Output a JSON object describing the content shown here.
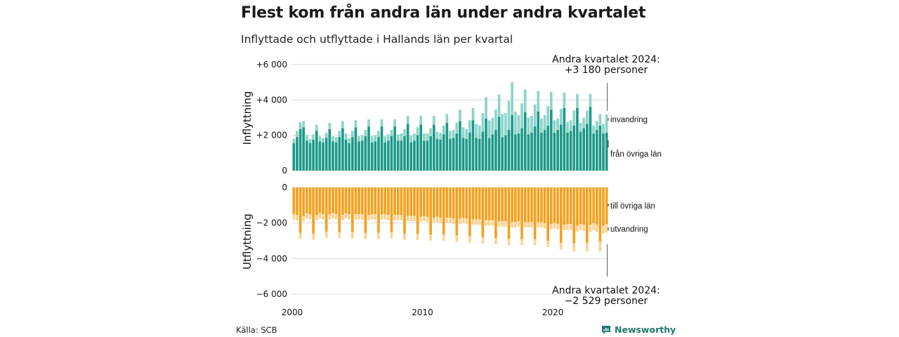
{
  "title": "Flest kom från andra län under andra kvartalet",
  "subtitle": "Inflyttade och utflyttade i Hallands län per kvartal",
  "source": "Källa: SCB",
  "brand": {
    "name": "Newsworthy",
    "icon": "newsworthy-logo-icon",
    "color": "#1f7a6a"
  },
  "colors": {
    "inflow_domestic": "#1b9987",
    "inflow_immigration": "#8dd3c9",
    "outflow_domestic": "#f5a01d",
    "outflow_emigration": "#fbd393",
    "grid": "#d9d9d9",
    "marker": "#555555"
  },
  "chart_data": [
    {
      "type": "bar",
      "stacked": true,
      "ylabel": "Inflyttning",
      "ylim": [
        0,
        6000
      ],
      "yticks": [
        "0",
        "+2 000",
        "+4 000",
        "+6 000"
      ],
      "x_start": 2000,
      "x_end": 2024.25,
      "periods_per_year": 4,
      "xticks": [
        "2000",
        "2010",
        "2020"
      ],
      "series": [
        {
          "name": "från övriga län",
          "values": [
            1550,
            1900,
            2350,
            2450,
            1700,
            1550,
            1750,
            2250,
            1650,
            1600,
            1850,
            2350,
            1650,
            1600,
            1900,
            2400,
            1750,
            1550,
            1900,
            2450,
            1650,
            1700,
            1950,
            2500,
            1600,
            1650,
            1900,
            2500,
            1600,
            1700,
            1950,
            2500,
            1700,
            1700,
            1950,
            2650,
            1600,
            1700,
            2000,
            2600,
            1700,
            1700,
            1950,
            2600,
            1800,
            1750,
            2050,
            2700,
            1800,
            1850,
            2100,
            2800,
            1850,
            1800,
            2150,
            2850,
            1850,
            1800,
            2200,
            2950,
            1850,
            2050,
            2300,
            3050,
            1900,
            2000,
            2300,
            3150,
            2050,
            2100,
            2400,
            3300,
            2050,
            2150,
            2500,
            3350,
            2150,
            2300,
            2550,
            3450,
            2150,
            2300,
            2600,
            3550,
            2150,
            2250,
            2550,
            3550,
            2200,
            2400,
            2650,
            3600,
            2100,
            2300,
            2550,
            2100,
            2150
          ]
        },
        {
          "name": "invandring",
          "values": [
            250,
            350,
            400,
            350,
            300,
            250,
            300,
            350,
            300,
            250,
            300,
            350,
            300,
            300,
            350,
            400,
            350,
            300,
            350,
            400,
            300,
            300,
            350,
            400,
            350,
            350,
            350,
            400,
            350,
            350,
            350,
            400,
            350,
            400,
            400,
            450,
            400,
            400,
            450,
            500,
            400,
            400,
            450,
            500,
            400,
            400,
            500,
            500,
            450,
            450,
            600,
            650,
            600,
            550,
            700,
            700,
            800,
            750,
            1050,
            1200,
            1000,
            950,
            1150,
            1250,
            1300,
            1250,
            1650,
            1850,
            1300,
            1050,
            1400,
            1300,
            950,
            950,
            1250,
            1150,
            800,
            850,
            1100,
            1000,
            700,
            650,
            900,
            850,
            600,
            600,
            850,
            800,
            500,
            600,
            750,
            750,
            450,
            500,
            650,
            550,
            1030
          ]
        }
      ]
    },
    {
      "type": "bar",
      "stacked": true,
      "ylabel": "Utflyttning",
      "ylim": [
        -6000,
        0
      ],
      "yticks": [
        "0",
        "−2 000",
        "−4 000",
        "−6 000"
      ],
      "x_start": 2000,
      "x_end": 2024.25,
      "periods_per_year": 4,
      "xticks": [
        "2000",
        "2010",
        "2020"
      ],
      "series": [
        {
          "name": "till övriga län",
          "values": [
            -1500,
            -1550,
            -2550,
            -1600,
            -1450,
            -1500,
            -2600,
            -1550,
            -1450,
            -1500,
            -2500,
            -1500,
            -1450,
            -1500,
            -2500,
            -1550,
            -1450,
            -1500,
            -2500,
            -1500,
            -1500,
            -1500,
            -2550,
            -1550,
            -1500,
            -1500,
            -2550,
            -1500,
            -1500,
            -1550,
            -2500,
            -1550,
            -1550,
            -1550,
            -2600,
            -1600,
            -1600,
            -1600,
            -2600,
            -1650,
            -1600,
            -1650,
            -2650,
            -1700,
            -1650,
            -1700,
            -2650,
            -1700,
            -1700,
            -1750,
            -2700,
            -1750,
            -1700,
            -1750,
            -2750,
            -1800,
            -1800,
            -1800,
            -2800,
            -1850,
            -1850,
            -1850,
            -2850,
            -1900,
            -1900,
            -1900,
            -2900,
            -1950,
            -1950,
            -1900,
            -2900,
            -1950,
            -1950,
            -1950,
            -2900,
            -1950,
            -1950,
            -2000,
            -3000,
            -2050,
            -2000,
            -2050,
            -3100,
            -2100,
            -2050,
            -2050,
            -3150,
            -2150,
            -2050,
            -2100,
            -3100,
            -2100,
            -2000,
            -2100,
            -3050,
            -2150,
            -2050
          ]
        },
        {
          "name": "utvandring",
          "values": [
            -300,
            -300,
            -350,
            -300,
            -300,
            -300,
            -350,
            -300,
            -300,
            -300,
            -350,
            -300,
            -300,
            -300,
            -350,
            -300,
            -300,
            -300,
            -350,
            -300,
            -300,
            -300,
            -350,
            -300,
            -300,
            -300,
            -350,
            -300,
            -300,
            -300,
            -350,
            -300,
            -300,
            -300,
            -350,
            -300,
            -300,
            -300,
            -350,
            -300,
            -300,
            -300,
            -350,
            -300,
            -300,
            -300,
            -350,
            -300,
            -300,
            -300,
            -350,
            -300,
            -300,
            -300,
            -350,
            -300,
            -300,
            -300,
            -350,
            -300,
            -300,
            -300,
            -350,
            -300,
            -300,
            -300,
            -350,
            -300,
            -300,
            -300,
            -350,
            -300,
            -300,
            -300,
            -350,
            -300,
            -300,
            -300,
            -350,
            -300,
            -300,
            -300,
            -400,
            -300,
            -350,
            -350,
            -450,
            -350,
            -350,
            -350,
            -500,
            -400,
            -400,
            -400,
            -550,
            -450,
            -479
          ]
        }
      ]
    }
  ],
  "annotations": {
    "top_line1": "Andra kvartalet 2024:",
    "top_line2": "+3 180 personer",
    "bottom_line1": "Andra kvartalet 2024:",
    "bottom_line2": "−2 529 personer"
  }
}
